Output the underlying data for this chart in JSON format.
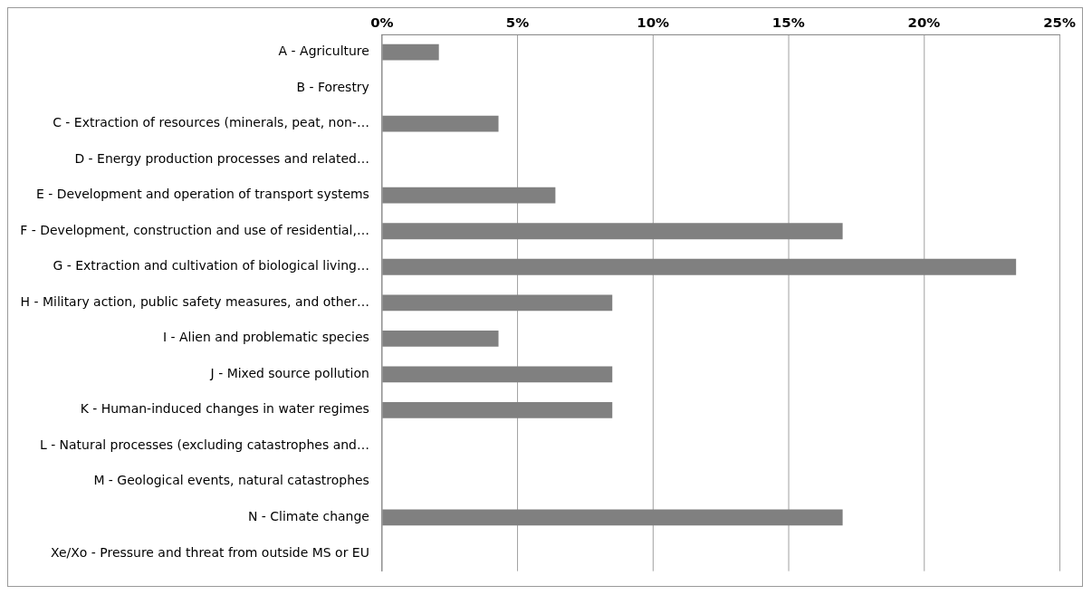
{
  "chart_data": {
    "type": "bar",
    "orientation": "horizontal",
    "categories": [
      "A - Agriculture",
      "B - Forestry",
      "C - Extraction of resources (minerals, peat, non-…",
      "D - Energy production processes and related…",
      "E - Development and operation of transport systems",
      "F - Development, construction and use of residential,…",
      "G - Extraction and cultivation of biological living…",
      "H - Military action, public safety measures, and other…",
      "I - Alien and problematic species",
      "J - Mixed source pollution",
      "K - Human-induced changes in water regimes",
      "L - Natural processes (excluding catastrophes and…",
      "M - Geological events, natural catastrophes",
      "N - Climate change",
      "Xe/Xo - Pressure and threat from outside MS or EU"
    ],
    "values": [
      2.1,
      0,
      4.3,
      0,
      6.4,
      17.0,
      23.4,
      8.5,
      4.3,
      8.5,
      8.5,
      0,
      0,
      17.0,
      0
    ],
    "color": "#808080",
    "xlim": [
      0,
      25
    ],
    "xticks": [
      {
        "value": 0,
        "label": "0%"
      },
      {
        "value": 5,
        "label": "5%"
      },
      {
        "value": 10,
        "label": "10%"
      },
      {
        "value": 15,
        "label": "15%"
      },
      {
        "value": 20,
        "label": "20%"
      },
      {
        "value": 25,
        "label": "25%"
      }
    ],
    "grid": "x",
    "legend": false
  }
}
